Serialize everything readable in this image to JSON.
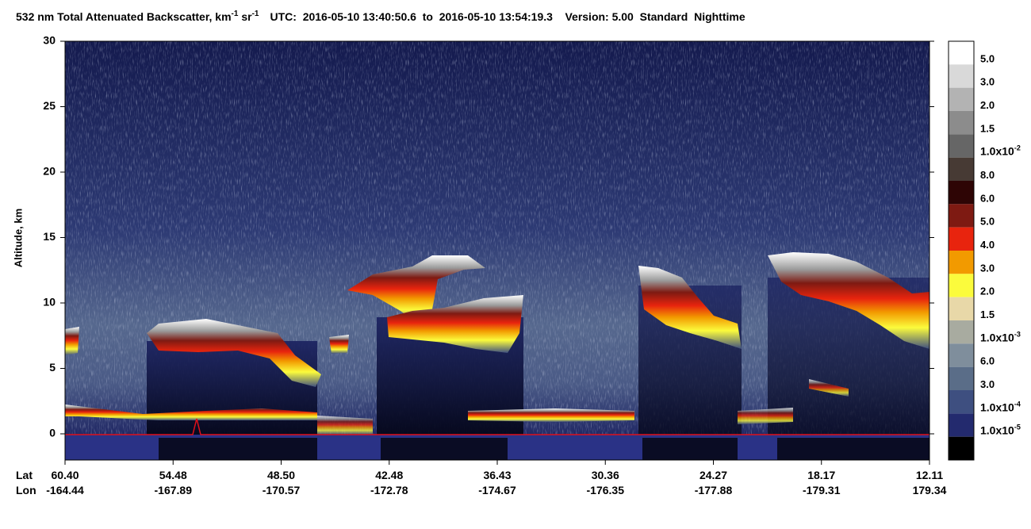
{
  "chart_data": {
    "type": "curtain",
    "title": [
      "532 nm Total Attenuated Backscatter, km",
      "-1",
      " sr",
      "-1"
    ],
    "info": "UTC:  2016-05-10 13:40:50.6  to  2016-05-10 13:54:19.3    Version: 5.00  Standard  Nighttime",
    "ylabel": "Altitude, km",
    "ylim": [
      -2,
      30
    ],
    "yticks": [
      0,
      5,
      10,
      15,
      20,
      25,
      30
    ],
    "x_row_labels": [
      "Lat",
      "Lon"
    ],
    "lat": [
      "60.40",
      "54.48",
      "48.50",
      "42.48",
      "36.43",
      "30.36",
      "24.27",
      "18.17",
      "12.11"
    ],
    "lon": [
      "-164.44",
      "-167.89",
      "-170.57",
      "-172.78",
      "-174.67",
      "-176.35",
      "-177.88",
      "-179.31",
      "179.34"
    ],
    "colorbar": {
      "colors": [
        "#ffffff",
        "#d9d9d9",
        "#b3b3b3",
        "#8c8c8c",
        "#666666",
        "#473a34",
        "#2e0505",
        "#7e1a12",
        "#e8240e",
        "#f29a00",
        "#fbfb3c",
        "#e8d8a8",
        "#a8aba0",
        "#7f8e9c",
        "#5a6d88",
        "#3e4f80",
        "#232a6e",
        "#000000"
      ],
      "labels": [
        "5.0",
        "3.0",
        "2.0",
        "1.5",
        {
          "base": "1.0x10",
          "sup": "-2"
        },
        "8.0",
        "6.0",
        "5.0",
        "4.0",
        "3.0",
        "2.0",
        "1.5",
        {
          "base": "1.0x10",
          "sup": "-3"
        },
        "6.0",
        "3.0",
        {
          "base": "1.0x10",
          "sup": "-4"
        },
        {
          "base": "1.0x10",
          "sup": "-5"
        }
      ]
    }
  }
}
